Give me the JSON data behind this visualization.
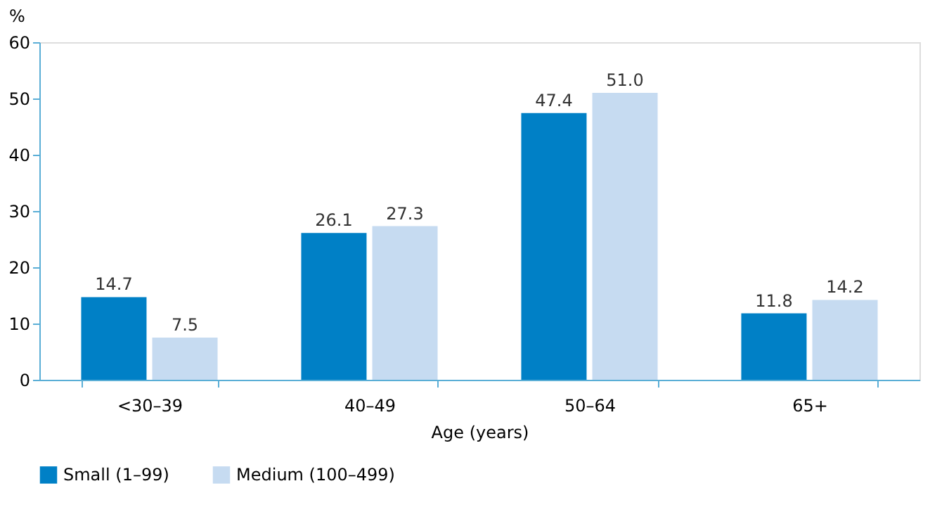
{
  "chart_data": {
    "type": "bar",
    "xlabel": "Age (years)",
    "ylabel": "%",
    "categories": [
      "<30–39",
      "40–49",
      "50–64",
      "65+"
    ],
    "series": [
      {
        "name": "Small (1–99)",
        "color": "#0080c6",
        "values": [
          14.7,
          26.1,
          47.4,
          11.8
        ],
        "value_labels": [
          "14.7",
          "26.1",
          "47.4",
          "11.8"
        ]
      },
      {
        "name": "Medium (100–499)",
        "color": "#c6dbf1",
        "values": [
          7.5,
          27.3,
          51.0,
          14.2
        ],
        "value_labels": [
          "7.5",
          "27.3",
          "51.0",
          "14.2"
        ]
      }
    ],
    "ylim": [
      0,
      60
    ],
    "yticks": [
      0,
      10,
      20,
      30,
      40,
      50,
      60
    ],
    "grid": false,
    "legend": "bottom"
  }
}
